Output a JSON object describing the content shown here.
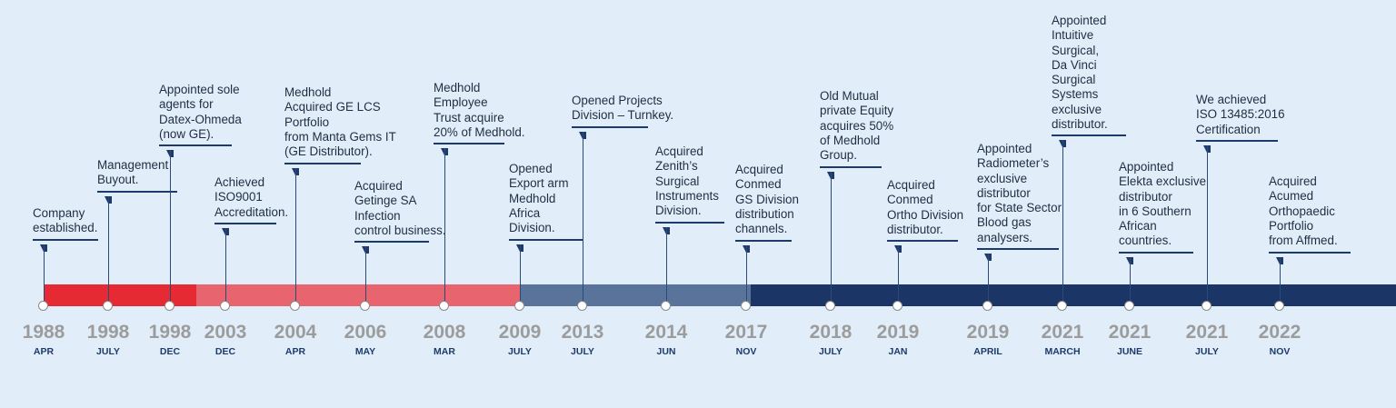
{
  "events": [
    {
      "year": "1988",
      "month": "APR",
      "lines": [
        "Company",
        "established."
      ]
    },
    {
      "year": "1998",
      "month": "JULY",
      "lines": [
        "Management",
        "Buyout."
      ]
    },
    {
      "year": "1998",
      "month": "DEC",
      "lines": [
        "Appointed sole",
        "agents for",
        "Datex-Ohmeda",
        "(now GE)."
      ]
    },
    {
      "year": "2003",
      "month": "DEC",
      "lines": [
        "Achieved",
        "ISO9001",
        "Accreditation."
      ]
    },
    {
      "year": "2004",
      "month": "APR",
      "lines": [
        "Medhold",
        "Acquired  GE LCS",
        "Portfolio",
        "from Manta Gems IT",
        "(GE Distributor)."
      ]
    },
    {
      "year": "2006",
      "month": "MAY",
      "lines": [
        "Acquired",
        "Getinge SA",
        "Infection",
        "control business."
      ]
    },
    {
      "year": "2008",
      "month": "MAR",
      "lines": [
        "Medhold",
        "Employee",
        "Trust acquire",
        "20% of Medhold."
      ]
    },
    {
      "year": "2009",
      "month": "JULY",
      "lines": [
        "Opened",
        "Export arm",
        "Medhold",
        "Africa",
        "Division."
      ]
    },
    {
      "year": "2013",
      "month": "JULY",
      "lines": [
        "Opened Projects",
        "Division – Turnkey."
      ]
    },
    {
      "year": "2014",
      "month": "JUN",
      "lines": [
        "Acquired",
        "Zenith’s",
        "Surgical",
        "Instruments",
        "Division."
      ]
    },
    {
      "year": "2017",
      "month": "NOV",
      "lines": [
        "Acquired",
        "Conmed",
        "GS Division",
        "distribution",
        "channels."
      ]
    },
    {
      "year": "2018",
      "month": "JULY",
      "lines": [
        "Old Mutual",
        "private Equity",
        "acquires 50%",
        "of Medhold",
        "Group."
      ]
    },
    {
      "year": "2019",
      "month": "JAN",
      "lines": [
        "Acquired",
        "Conmed",
        "Ortho Division",
        "distributor."
      ]
    },
    {
      "year": "2019",
      "month": "APRIL",
      "lines": [
        "Appointed",
        "Radiometer’s",
        "exclusive",
        "distributor",
        "for State Sector",
        "Blood gas",
        "analysers."
      ]
    },
    {
      "year": "2021",
      "month": "MARCH",
      "lines": [
        "Appointed",
        "Intuitive",
        "Surgical,",
        "Da Vinci",
        "Surgical",
        "Systems",
        "exclusive",
        "distributor."
      ]
    },
    {
      "year": "2021",
      "month": "JUNE",
      "lines": [
        "Appointed",
        "Elekta exclusive",
        "distributor",
        "in 6 Southern",
        "African",
        "countries."
      ]
    },
    {
      "year": "2021",
      "month": "JULY",
      "lines": [
        "We achieved",
        "ISO 13485:2016",
        "Certification"
      ]
    },
    {
      "year": "2022",
      "month": "NOV",
      "lines": [
        "Acquired",
        "Acumed",
        "Orthopaedic",
        "Portfolio",
        "from Affmed."
      ]
    }
  ]
}
